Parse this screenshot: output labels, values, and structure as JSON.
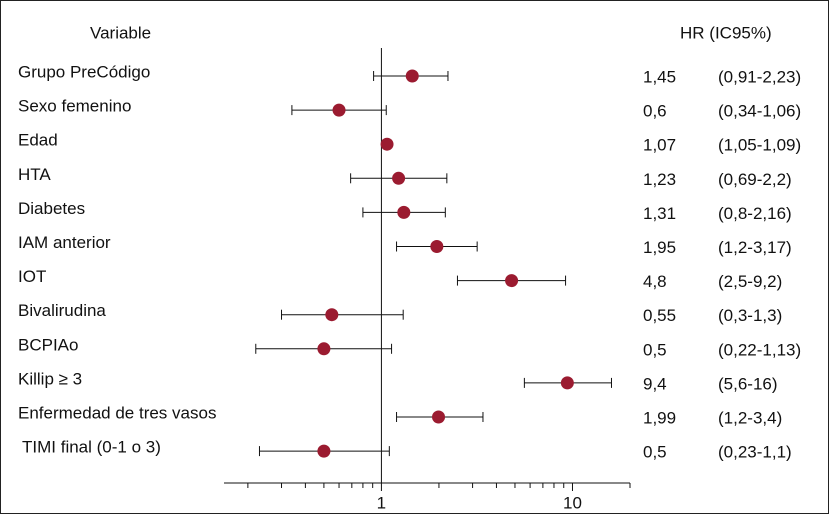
{
  "chart_data": {
    "type": "forest",
    "variable_header": "Variable",
    "estimate_header": "HR (IC95%)",
    "categories": [
      "Grupo PreCódigo",
      "Sexo femenino",
      "Edad",
      "HTA",
      "Diabetes",
      "IAM anterior",
      "IOT",
      "Bivalirudina",
      "BCPIAo",
      "Killip ≥ 3",
      "Enfermedad de tres vasos",
      "TIMI final (0-1 o 3)"
    ],
    "values": [
      1.45,
      0.6,
      1.07,
      1.23,
      1.31,
      1.95,
      4.8,
      0.55,
      0.5,
      9.4,
      1.99,
      0.5
    ],
    "value_labels": [
      "1,45",
      "0,6",
      "1,07",
      "1,23",
      "1,31",
      "1,95",
      "4,8",
      "0,55",
      "0,5",
      "9,4",
      "1,99",
      "0,5"
    ],
    "lower": [
      0.91,
      0.34,
      1.05,
      0.69,
      0.8,
      1.2,
      2.5,
      0.3,
      0.22,
      5.6,
      1.2,
      0.23
    ],
    "upper": [
      2.23,
      1.06,
      1.09,
      2.2,
      2.16,
      3.17,
      9.2,
      1.3,
      1.13,
      16,
      3.4,
      1.1
    ],
    "ci_labels": [
      "(0,91-2,23)",
      "(0,34-1,06)",
      "(1,05-1,09)",
      "(0,69-2,2)",
      "(0,8-2,16)",
      "(1,2-3,17)",
      "(2,5-9,2)",
      "(0,3-1,3)",
      "(0,22-1,13)",
      "(5,6-16)",
      "(1,2-3,4)",
      "(0,23-1,1)"
    ],
    "color": "#9b1b30",
    "xscale": "log",
    "xlim": [
      0.15,
      20
    ],
    "xticks": [
      1,
      10
    ],
    "minor_xticks": [
      0.2,
      0.3,
      0.4,
      0.5,
      0.6,
      0.7,
      0.8,
      0.9,
      2,
      3,
      4,
      5,
      6,
      7,
      8,
      9,
      20
    ],
    "reference_line": 1
  }
}
